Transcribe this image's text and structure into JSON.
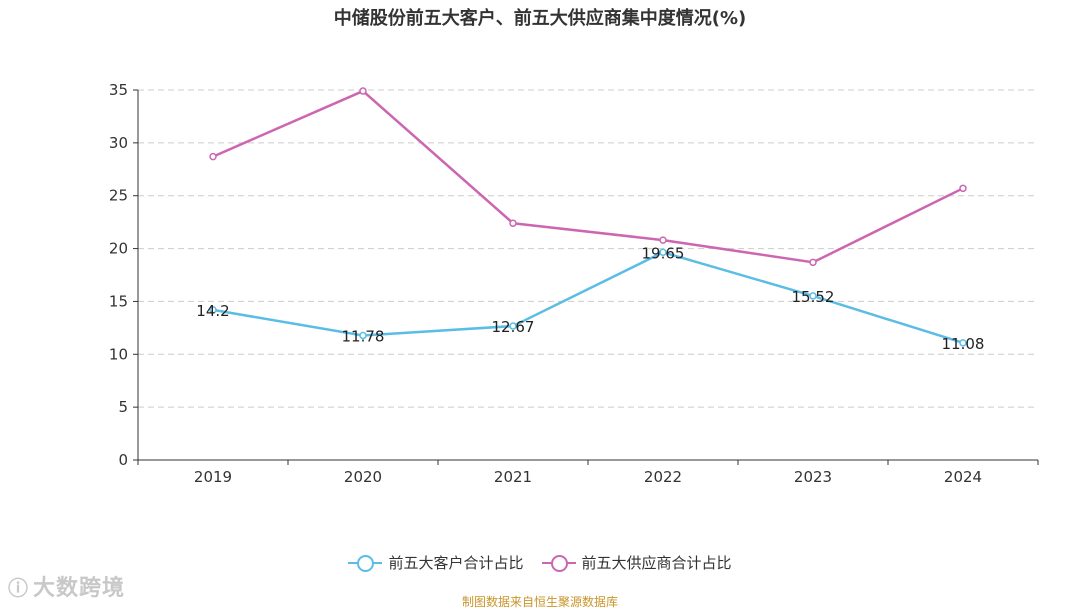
{
  "chart_data": {
    "type": "line",
    "title": "中储股份前五大客户、前五大供应商集中度情况(%)",
    "categories": [
      "2019",
      "2020",
      "2021",
      "2022",
      "2023",
      "2024"
    ],
    "ylim": [
      0,
      35
    ],
    "yticks": [
      0,
      5,
      10,
      15,
      20,
      25,
      30,
      35
    ],
    "grid": true,
    "legend_position": "bottom",
    "series": [
      {
        "name": "前五大客户合计占比",
        "color": "#5bbde6",
        "values": [
          14.2,
          11.78,
          12.67,
          19.65,
          15.52,
          11.08
        ],
        "labels": [
          "14.2",
          "11.78",
          "12.67",
          "19.65",
          "15.52",
          "11.08"
        ]
      },
      {
        "name": "前五大供应商合计占比",
        "color": "#cc66b0",
        "values": [
          28.7,
          34.9,
          22.4,
          20.8,
          18.7,
          25.7
        ]
      }
    ]
  },
  "watermark": {
    "icon": "logo-icon",
    "text": "大数跨境"
  },
  "source": "制图数据来自恒生聚源数据库"
}
